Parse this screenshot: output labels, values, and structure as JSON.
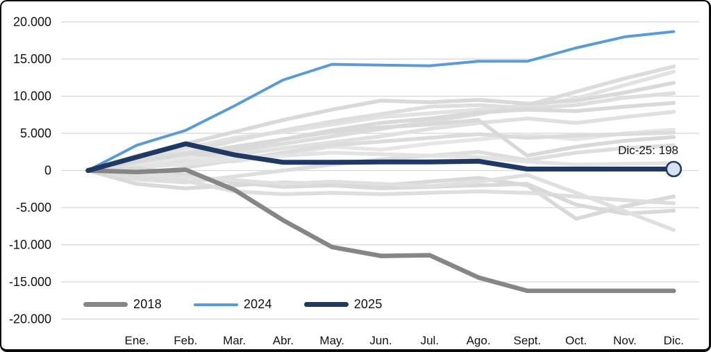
{
  "chart_data": {
    "type": "line",
    "grid": true,
    "ylim": [
      -20000,
      20000
    ],
    "legend_position": "bottom-left",
    "categories": [
      "Ene.",
      "Feb.",
      "Mar.",
      "Abr.",
      "May.",
      "Jun.",
      "Jul.",
      "Ago.",
      "Sept.",
      "Oct.",
      "Nov.",
      "Dic."
    ],
    "x_layout_note": "all series start from an unlabeled zero origin point left of Ene.",
    "yticks": [
      {
        "label": "20.000",
        "value": 20000
      },
      {
        "label": "15.000",
        "value": 15000
      },
      {
        "label": "10.000",
        "value": 10000
      },
      {
        "label": "5.000",
        "value": 5000
      },
      {
        "label": "0",
        "value": 0
      },
      {
        "label": "-5.000",
        "value": -5000
      },
      {
        "label": "-10.000",
        "value": -10000
      },
      {
        "label": "-15.000",
        "value": -15000
      },
      {
        "label": "-20.000",
        "value": -20000
      }
    ],
    "series": [
      {
        "name": "2018",
        "color": "#868686",
        "width": 6.5,
        "values": [
          0,
          -200,
          100,
          -2600,
          -6700,
          -10300,
          -11500,
          -11400,
          -14400,
          -16200,
          -16200,
          -16200,
          -16200
        ]
      },
      {
        "name": "2024",
        "color": "#5b9bd5",
        "width": 4,
        "values": [
          0,
          3400,
          5400,
          8700,
          12200,
          14300,
          14200,
          14100,
          14700,
          14700,
          16500,
          18000,
          18700
        ]
      },
      {
        "name": "2025",
        "color": "#1f3864",
        "width": 7,
        "values": [
          0,
          1800,
          3600,
          2100,
          1100,
          1100,
          1150,
          1150,
          1250,
          200,
          200,
          200,
          198
        ]
      }
    ],
    "background_series": [
      {
        "color": "#dcdcdc",
        "values": [
          0,
          1000,
          1800,
          2600,
          3600,
          4600,
          5600,
          6600,
          7600,
          8800,
          10600,
          12400,
          14000
        ]
      },
      {
        "color": "#e2e2e2",
        "values": [
          0,
          1600,
          3000,
          4400,
          5200,
          6200,
          7200,
          7700,
          8200,
          8700,
          9700,
          11500,
          13300
        ]
      },
      {
        "color": "#d9d9d9",
        "values": [
          0,
          2000,
          3600,
          5200,
          6800,
          8200,
          9400,
          9200,
          9500,
          9000,
          9400,
          10500,
          11800
        ]
      },
      {
        "color": "#dedede",
        "values": [
          0,
          1400,
          2400,
          4000,
          5400,
          6600,
          7600,
          8600,
          8800,
          8400,
          8800,
          9800,
          10400
        ]
      },
      {
        "color": "#d9d9d9",
        "values": [
          0,
          600,
          1600,
          2800,
          4200,
          5400,
          6400,
          7000,
          7800,
          8200,
          8000,
          8600,
          9100
        ]
      },
      {
        "color": "#e0e0e0",
        "values": [
          0,
          900,
          1300,
          2100,
          3000,
          3800,
          4600,
          5600,
          6400,
          7000,
          6400,
          7200,
          7900
        ]
      },
      {
        "color": "#e6e6e6",
        "values": [
          0,
          600,
          1800,
          1200,
          2200,
          3200,
          2800,
          3600,
          4200,
          4800,
          4200,
          5000,
          5500
        ]
      },
      {
        "color": "#dcdcdc",
        "values": [
          0,
          -600,
          400,
          1400,
          2400,
          3400,
          3900,
          4400,
          4900,
          4400,
          4700,
          4900,
          5100
        ]
      },
      {
        "color": "#d9d9d9",
        "values": [
          0,
          1200,
          2200,
          3200,
          4200,
          5200,
          5800,
          6200,
          6800,
          2000,
          3200,
          4000,
          4500
        ]
      },
      {
        "color": "#dedede",
        "values": [
          0,
          -1200,
          -1600,
          -800,
          0,
          800,
          1500,
          2000,
          2500,
          1400,
          2400,
          3000,
          3400
        ]
      },
      {
        "color": "#e3e3e3",
        "values": [
          0,
          400,
          900,
          1500,
          2000,
          2400,
          2200,
          2000,
          1800,
          1200,
          800,
          900,
          1000
        ]
      },
      {
        "color": "#d9d9d9",
        "values": [
          0,
          -1800,
          -2400,
          -2000,
          -1600,
          -1800,
          -2000,
          -1500,
          -1000,
          -2000,
          -6500,
          -4800,
          -3500
        ]
      },
      {
        "color": "#dedede",
        "values": [
          0,
          -800,
          -1400,
          -2800,
          -3200,
          -3000,
          -3200,
          -3000,
          -2800,
          -3000,
          -3500,
          -4000,
          -4400
        ]
      },
      {
        "color": "#d9d9d9",
        "values": [
          0,
          300,
          -600,
          -1600,
          -2200,
          -2000,
          -2400,
          -2200,
          -2000,
          -1800,
          -4600,
          -5800,
          -5400
        ]
      },
      {
        "color": "#e0e0e0",
        "values": [
          0,
          -400,
          -900,
          -1300,
          -1800,
          -1500,
          -1800,
          -2100,
          -1500,
          -600,
          -3000,
          -5500,
          -8000
        ]
      }
    ],
    "marker": {
      "series": "2025",
      "x_index": 12,
      "value": 198,
      "fill": "#d6e2f0",
      "stroke": "#1f3864"
    },
    "annotation": {
      "text": "Dic-25: 198"
    },
    "legend": {
      "items": [
        {
          "label": "2018",
          "color": "#868686",
          "thickness": 7
        },
        {
          "label": "2024",
          "color": "#5b9bd5",
          "thickness": 4
        },
        {
          "label": "2025",
          "color": "#1f3864",
          "thickness": 7
        }
      ]
    },
    "colors": {
      "gridline": "#d9d9d9",
      "axis_text": "#111111",
      "background": "#ffffff"
    }
  }
}
